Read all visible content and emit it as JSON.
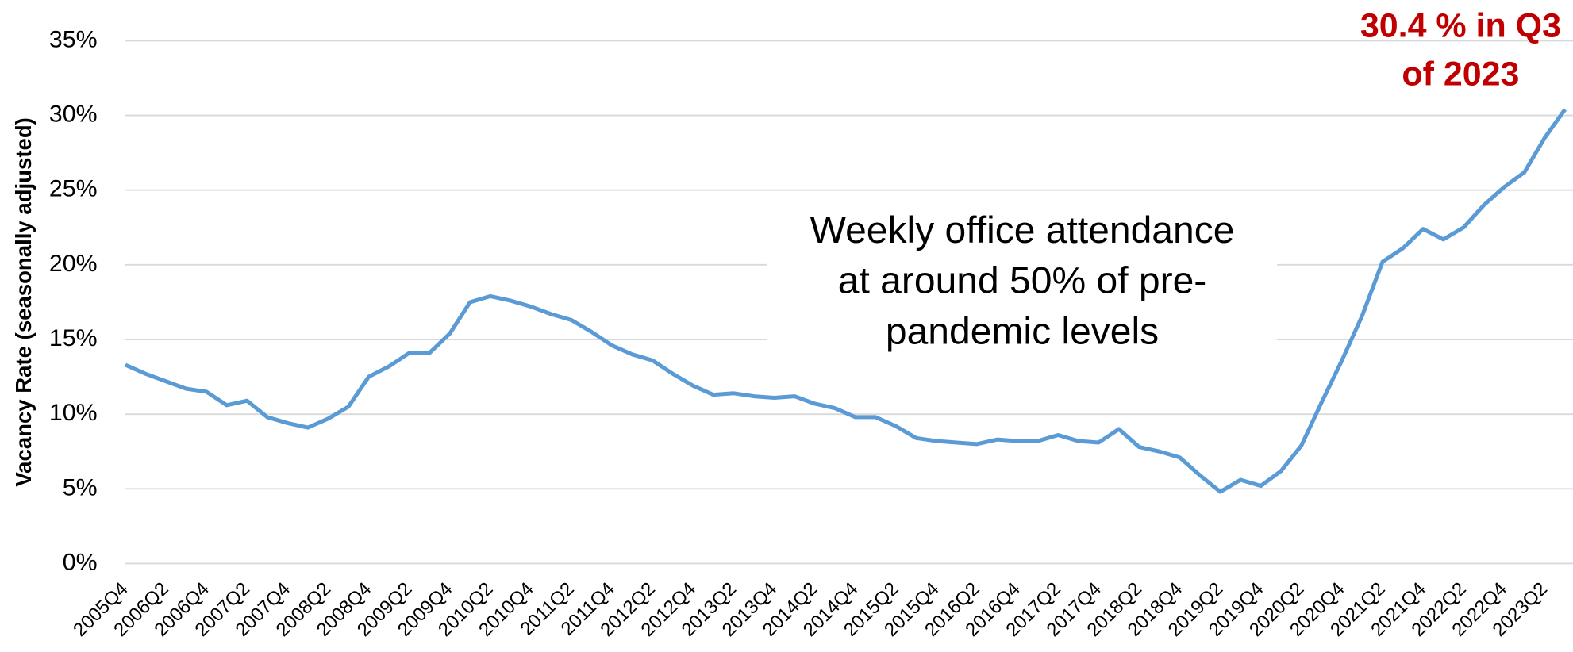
{
  "chart_data": {
    "type": "line",
    "y_label": "Vacancy Rate (seasonally adjusted)",
    "annotation": [
      "30.4 % in Q3",
      "of 2023"
    ],
    "note": [
      "Weekly office attendance",
      "at around 50% of pre-",
      "pandemic levels"
    ],
    "categories": [
      "2005Q4",
      null,
      "2006Q2",
      null,
      "2006Q4",
      null,
      "2007Q2",
      null,
      "2007Q4",
      null,
      "2008Q2",
      null,
      "2008Q4",
      null,
      "2009Q2",
      null,
      "2009Q4",
      null,
      "2010Q2",
      null,
      "2010Q4",
      null,
      "2011Q2",
      null,
      "2011Q4",
      null,
      "2012Q2",
      null,
      "2012Q4",
      null,
      "2013Q2",
      null,
      "2013Q4",
      null,
      "2014Q2",
      null,
      "2014Q4",
      null,
      "2015Q2",
      null,
      "2015Q4",
      null,
      "2016Q2",
      null,
      "2016Q4",
      null,
      "2017Q2",
      null,
      "2017Q4",
      null,
      "2018Q2",
      null,
      "2018Q4",
      null,
      "2019Q2",
      null,
      "2019Q4",
      null,
      "2020Q2",
      null,
      "2020Q4",
      null,
      "2021Q2",
      null,
      "2021Q4",
      null,
      "2022Q2",
      null,
      "2022Q4",
      null,
      "2023Q2",
      null
    ],
    "values": [
      13.3,
      12.7,
      12.2,
      11.7,
      11.5,
      10.6,
      10.9,
      9.8,
      9.4,
      9.1,
      9.7,
      10.5,
      12.5,
      13.2,
      14.1,
      14.1,
      15.4,
      17.5,
      17.9,
      17.6,
      17.2,
      16.7,
      16.3,
      15.5,
      14.6,
      14.0,
      13.6,
      12.7,
      11.9,
      11.3,
      11.4,
      11.2,
      11.1,
      11.2,
      10.7,
      10.4,
      9.8,
      9.8,
      9.2,
      8.4,
      8.2,
      8.1,
      8.0,
      8.3,
      8.2,
      8.2,
      8.6,
      8.2,
      8.1,
      9.0,
      7.8,
      7.5,
      7.1,
      5.9,
      4.8,
      5.6,
      5.2,
      6.2,
      7.9,
      10.8,
      13.6,
      16.6,
      20.2,
      21.1,
      22.4,
      21.7,
      22.5,
      24.0,
      25.2,
      26.2,
      28.5,
      30.4
    ],
    "color": "#5b9bd5",
    "annotation_color": "#c00000",
    "ylim": [
      0,
      35
    ],
    "yticks": [
      {
        "value": 0,
        "label": "0%"
      },
      {
        "value": 5,
        "label": "5%"
      },
      {
        "value": 10,
        "label": "10%"
      },
      {
        "value": 15,
        "label": "15%"
      },
      {
        "value": 20,
        "label": "20%"
      },
      {
        "value": 25,
        "label": "25%"
      },
      {
        "value": 30,
        "label": "30%"
      },
      {
        "value": 35,
        "label": "35%"
      }
    ],
    "grid": true
  }
}
